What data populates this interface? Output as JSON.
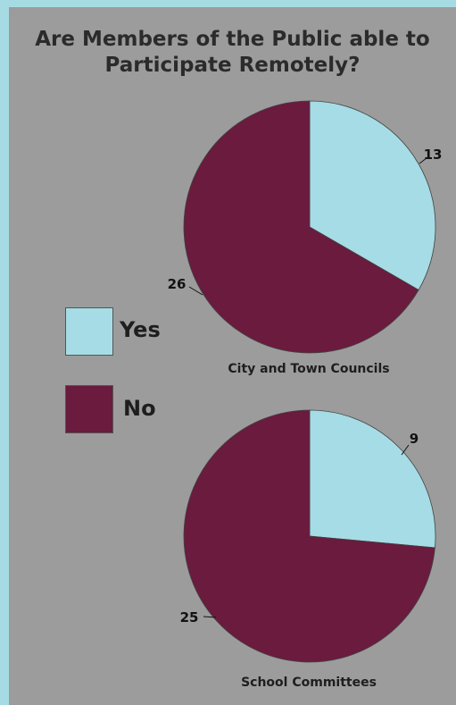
{
  "chart_data": [
    {
      "type": "pie",
      "title": "Are Members of the Public able to Participate Remotely?",
      "caption": "City and Town Councils",
      "categories": [
        "Yes",
        "No"
      ],
      "values": [
        13,
        26
      ],
      "value_labels": [
        "13",
        "26"
      ]
    },
    {
      "type": "pie",
      "caption": "School Committees",
      "categories": [
        "Yes",
        "No"
      ],
      "values": [
        9,
        25
      ],
      "value_labels": [
        "9",
        "25"
      ]
    }
  ],
  "title_lines": [
    "Are Members of the Public able to",
    "Participate Remotely?"
  ],
  "legend": [
    {
      "label": "Yes",
      "color": "#a6dce5"
    },
    {
      "label": "No",
      "color": "#6a1b3e"
    }
  ],
  "colors": {
    "background": "#9c9c9c",
    "border": "#a7dbe3"
  }
}
